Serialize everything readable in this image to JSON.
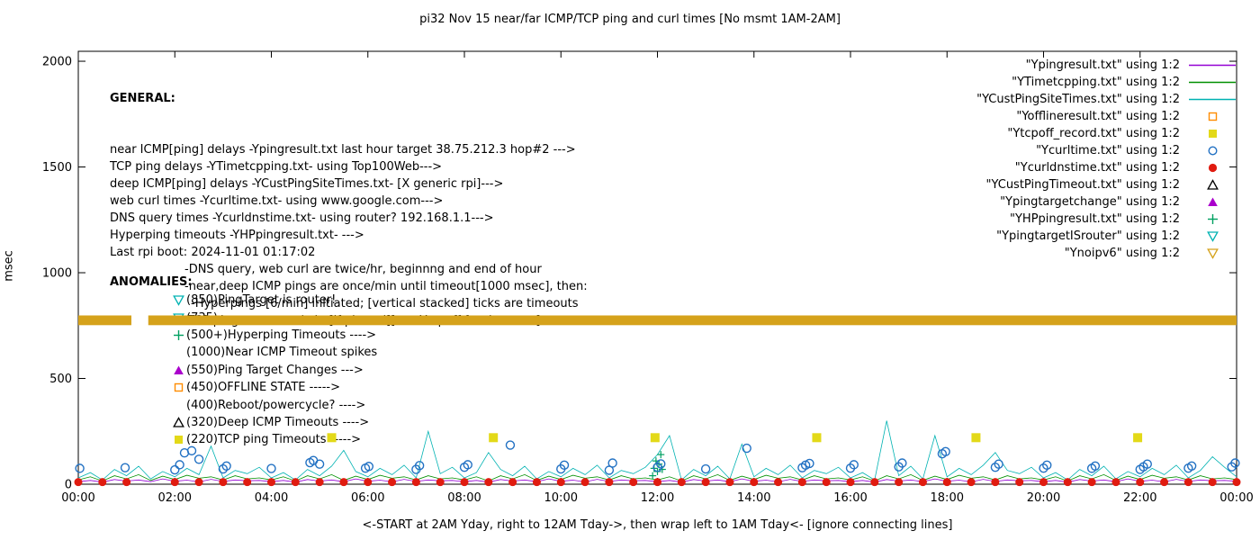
{
  "title": "pi32 Nov 15  near/far ICMP/TCP ping and curl times [No msmt 1AM-2AM]",
  "axes": {
    "ylabel": "msec",
    "xlabel": "<-START at 2AM Yday, right to 12AM Tday->, then wrap left to 1AM Tday<- [ignore connecting lines]"
  },
  "general": {
    "heading": "GENERAL:",
    "lines": [
      {
        "t": "near ICMP[ping] delays -Ypingresult.txt last hour target 38.75.212.3 hop#2 --->",
        "i": 0
      },
      {
        "t": "TCP ping delays -YTimetcpping.txt- using Top100Web--->",
        "i": 0
      },
      {
        "t": "deep ICMP[ping] delays -YCustPingSiteTimes.txt- [X generic rpi]--->",
        "i": 0
      },
      {
        "t": "web curl times -Ycurltime.txt- using www.google.com--->",
        "i": 0
      },
      {
        "t": "DNS query times -Ycurldnstime.txt- using router? 192.168.1.1--->",
        "i": 0
      },
      {
        "t": "Hyperping timeouts -YHPpingresult.txt- --->",
        "i": 0
      },
      {
        "t": "Last rpi boot: 2024-11-01 01:17:02",
        "i": 0
      },
      {
        "t": "-DNS query, web curl are twice/hr, beginnng and end of hour",
        "i": 1
      },
      {
        "t": "-near,deep ICMP pings are once/min until timeout[1000 msec], then:",
        "i": 1
      },
      {
        "t": "-Hyperpings [6/min] initiated; [vertical stacked] ticks are timeouts",
        "i": 2
      },
      {
        "t": "-TCP pings are once/min [if plotted][use Ytcpoff for timeouts]",
        "i": 1
      }
    ]
  },
  "anomalies": {
    "heading": "ANOMALIES:",
    "items": [
      {
        "marker": "tri-down-open",
        "color": "#00b2b2",
        "t": "(850)PingTarget is router!"
      },
      {
        "marker": "tri-down-open",
        "color": "#00b2b2",
        "t": "(735)"
      },
      {
        "marker": "plus",
        "color": "#00a060",
        "t": "(500+)Hyperping Timeouts ---->"
      },
      {
        "marker": null,
        "color": null,
        "t": "(1000)Near ICMP Timeout spikes"
      },
      {
        "marker": "tri-up-filled",
        "color": "#aa00cc",
        "t": "(550)Ping Target Changes --->"
      },
      {
        "marker": "square-open",
        "color": "#ff8c00",
        "t": "(450)OFFLINE STATE ----->"
      },
      {
        "marker": null,
        "color": null,
        "t": "(400)Reboot/powercycle? ---->"
      },
      {
        "marker": "tri-up-open",
        "color": "#000000",
        "t": "(320)Deep ICMP Timeouts ---->"
      },
      {
        "marker": "square-filled",
        "color": "#e3d918",
        "t": "(220)TCP ping Timeouts ----->"
      }
    ]
  },
  "legend": [
    {
      "label": "\"Ypingresult.txt\" using 1:2",
      "marker": "line",
      "color": "#9400d3"
    },
    {
      "label": "\"YTimetcpping.txt\" using 1:2",
      "marker": "line",
      "color": "#009000"
    },
    {
      "label": "\"YCustPingSiteTimes.txt\" using 1:2",
      "marker": "line",
      "color": "#00b2b2"
    },
    {
      "label": "\"Yofflineresult.txt\" using 1:2",
      "marker": "square-open",
      "color": "#ff8c00"
    },
    {
      "label": "\"Ytcpoff_record.txt\" using 1:2",
      "marker": "square-filled",
      "color": "#e3d918"
    },
    {
      "label": "\"Ycurltime.txt\" using 1:2",
      "marker": "circle-open",
      "color": "#2271c3"
    },
    {
      "label": "\"Ycurldnstime.txt\" using 1:2",
      "marker": "circle-filled",
      "color": "#e01b10"
    },
    {
      "label": "\"YCustPingTimeout.txt\" using 1:2",
      "marker": "tri-up-open",
      "color": "#000000"
    },
    {
      "label": "\"Ypingtargetchange\" using 1:2",
      "marker": "tri-up-filled",
      "color": "#aa00cc"
    },
    {
      "label": "\"YHPpingresult.txt\" using 1:2",
      "marker": "plus",
      "color": "#00a060"
    },
    {
      "label": "\"YpingtargetISrouter\" using 1:2",
      "marker": "tri-down-open",
      "color": "#00b2b2"
    },
    {
      "label": "\"Ynoipv6\" using 1:2",
      "marker": "tri-down-open",
      "color": "#d5a21b"
    }
  ],
  "chart_data": {
    "type": "line",
    "title": "pi32 Nov 15  near/far ICMP/TCP ping and curl times [No msmt 1AM-2AM]",
    "ylabel": "msec",
    "ylim": [
      0,
      2047
    ],
    "yticks": [
      0,
      500,
      1000,
      1500,
      2000
    ],
    "xlim": [
      0,
      24
    ],
    "xticks": [
      {
        "h": 0,
        "label": "00:00"
      },
      {
        "h": 2,
        "label": "02:00"
      },
      {
        "h": 4,
        "label": "04:00"
      },
      {
        "h": 6,
        "label": "06:00"
      },
      {
        "h": 8,
        "label": "08:00"
      },
      {
        "h": 10,
        "label": "10:00"
      },
      {
        "h": 12,
        "label": "12:00"
      },
      {
        "h": 14,
        "label": "14:00"
      },
      {
        "h": 16,
        "label": "16:00"
      },
      {
        "h": 18,
        "label": "18:00"
      },
      {
        "h": 20,
        "label": "20:00"
      },
      {
        "h": 22,
        "label": "22:00"
      },
      {
        "h": 24,
        "label": "00:00"
      }
    ],
    "series": [
      {
        "name": "Ypingresult.txt",
        "type": "line",
        "color": "#9400d3",
        "x_start": 0,
        "x_step": 0.25,
        "values": [
          12,
          18,
          10,
          22,
          15,
          20,
          12,
          25,
          14,
          19,
          11,
          23,
          13,
          20,
          16,
          18,
          12,
          18,
          10,
          22,
          15,
          20,
          12,
          25,
          14,
          19,
          11,
          23,
          13,
          20,
          16,
          18,
          12,
          18,
          10,
          22,
          15,
          20,
          12,
          25,
          14,
          19,
          11,
          23,
          13,
          20,
          16,
          18,
          12,
          18,
          10,
          22,
          15,
          20,
          12,
          25,
          14,
          19,
          11,
          23,
          13,
          20,
          16,
          18,
          12,
          18,
          10,
          22,
          15,
          20,
          12,
          25,
          14,
          19,
          11,
          23,
          13,
          20,
          16,
          18,
          12,
          18,
          10,
          22,
          15,
          20,
          12,
          25,
          14,
          19,
          11,
          23,
          13,
          20,
          16,
          18,
          14
        ]
      },
      {
        "name": "YTimetcpping.txt",
        "type": "line",
        "color": "#009000",
        "x_start": 0,
        "x_step": 0.25,
        "values": [
          20,
          35,
          15,
          40,
          25,
          45,
          18,
          38,
          22,
          42,
          28,
          35,
          20,
          40,
          25,
          30,
          20,
          35,
          15,
          40,
          25,
          45,
          18,
          38,
          22,
          42,
          28,
          35,
          20,
          40,
          25,
          30,
          20,
          35,
          15,
          40,
          25,
          45,
          18,
          38,
          22,
          42,
          28,
          35,
          20,
          40,
          25,
          30,
          20,
          35,
          15,
          40,
          25,
          45,
          18,
          38,
          22,
          42,
          28,
          35,
          20,
          40,
          25,
          30,
          20,
          35,
          15,
          40,
          25,
          45,
          18,
          38,
          22,
          42,
          28,
          35,
          20,
          40,
          25,
          30,
          20,
          35,
          15,
          40,
          25,
          45,
          18,
          38,
          22,
          42,
          28,
          35,
          20,
          40,
          25,
          30,
          22
        ]
      },
      {
        "name": "YCustPingSiteTimes.txt",
        "type": "line",
        "color": "#00b2b2",
        "x_start": 0,
        "x_step": 0.25,
        "values": [
          30,
          55,
          20,
          70,
          40,
          85,
          25,
          60,
          35,
          75,
          45,
          180,
          30,
          65,
          50,
          80,
          30,
          55,
          20,
          70,
          40,
          85,
          160,
          60,
          35,
          75,
          45,
          90,
          30,
          250,
          50,
          80,
          30,
          55,
          150,
          70,
          40,
          85,
          25,
          60,
          35,
          75,
          45,
          90,
          30,
          65,
          50,
          80,
          140,
          230,
          20,
          70,
          40,
          85,
          25,
          190,
          35,
          75,
          45,
          90,
          30,
          65,
          50,
          80,
          30,
          55,
          20,
          300,
          40,
          85,
          25,
          230,
          35,
          75,
          45,
          90,
          150,
          65,
          50,
          80,
          30,
          55,
          20,
          70,
          40,
          85,
          25,
          60,
          35,
          75,
          45,
          90,
          30,
          65,
          130,
          80,
          35
        ]
      },
      {
        "name": "YHPpingresult.txt",
        "type": "plus",
        "color": "#00a060",
        "points": [
          [
            11.9,
            40
          ],
          [
            11.93,
            75
          ],
          [
            11.97,
            110
          ],
          [
            12.0,
            60
          ],
          [
            12.03,
            95
          ],
          [
            12.07,
            140
          ],
          [
            12.1,
            70
          ]
        ]
      },
      {
        "name": "Ycurltime.txt",
        "type": "circle-open",
        "color": "#2271c3",
        "points": [
          [
            0.03,
            75
          ],
          [
            0.97,
            78
          ],
          [
            2.0,
            68
          ],
          [
            2.1,
            92
          ],
          [
            2.2,
            148
          ],
          [
            2.35,
            158
          ],
          [
            2.5,
            118
          ],
          [
            3.0,
            72
          ],
          [
            3.07,
            86
          ],
          [
            4.0,
            74
          ],
          [
            4.8,
            102
          ],
          [
            4.87,
            112
          ],
          [
            5.0,
            95
          ],
          [
            5.95,
            76
          ],
          [
            6.02,
            84
          ],
          [
            7.0,
            70
          ],
          [
            7.07,
            88
          ],
          [
            8.0,
            80
          ],
          [
            8.07,
            92
          ],
          [
            8.95,
            185
          ],
          [
            10.0,
            72
          ],
          [
            10.07,
            90
          ],
          [
            11.0,
            66
          ],
          [
            11.07,
            100
          ],
          [
            12.0,
            80
          ],
          [
            12.07,
            96
          ],
          [
            13.0,
            72
          ],
          [
            13.85,
            170
          ],
          [
            15.0,
            78
          ],
          [
            15.07,
            90
          ],
          [
            15.15,
            98
          ],
          [
            16.0,
            76
          ],
          [
            16.07,
            92
          ],
          [
            17.0,
            82
          ],
          [
            17.07,
            100
          ],
          [
            17.9,
            144
          ],
          [
            17.97,
            154
          ],
          [
            19.0,
            80
          ],
          [
            19.07,
            95
          ],
          [
            20.0,
            76
          ],
          [
            20.07,
            90
          ],
          [
            21.0,
            75
          ],
          [
            21.07,
            86
          ],
          [
            22.0,
            70
          ],
          [
            22.07,
            82
          ],
          [
            22.15,
            95
          ],
          [
            23.0,
            76
          ],
          [
            23.07,
            86
          ],
          [
            23.9,
            82
          ],
          [
            23.97,
            100
          ]
        ]
      },
      {
        "name": "Ycurldnstime.txt",
        "type": "circle-filled",
        "color": "#e01b10",
        "value": 10,
        "times": [
          0,
          0.5,
          1,
          2,
          2.5,
          3,
          3.5,
          4,
          4.5,
          5,
          5.5,
          6,
          6.5,
          7,
          7.5,
          8,
          8.5,
          9,
          9.5,
          10,
          10.5,
          11,
          11.5,
          12,
          12.5,
          13,
          13.5,
          14,
          14.5,
          15,
          15.5,
          16,
          16.5,
          17,
          17.5,
          18,
          18.5,
          19,
          19.5,
          20,
          20.5,
          21,
          21.5,
          22,
          22.5,
          23,
          23.5,
          24
        ]
      },
      {
        "name": "Ytcpoff_record.txt",
        "type": "square-filled",
        "color": "#e3d918",
        "points": [
          [
            5.25,
            220
          ],
          [
            8.6,
            220
          ],
          [
            11.95,
            220
          ],
          [
            15.3,
            220
          ],
          [
            18.6,
            220
          ],
          [
            21.95,
            220
          ]
        ]
      },
      {
        "name": "Ynoipv6",
        "type": "band",
        "color": "#d5a21b",
        "value": 775,
        "thickness_msec": 46,
        "segments": [
          [
            0,
            1.1
          ],
          [
            1.45,
            24
          ]
        ]
      }
    ]
  }
}
